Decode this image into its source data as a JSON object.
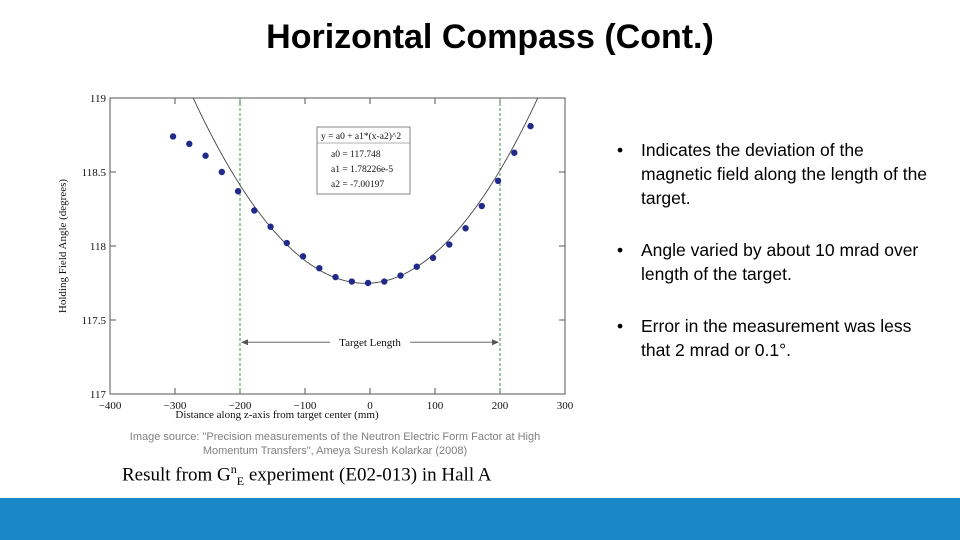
{
  "slide": {
    "title": "Horizontal Compass (Cont.)",
    "bullets": [
      "Indicates the deviation of the magnetic field along the length of the target.",
      "Angle varied by about 10 mrad over length of the target.",
      "Error in the measurement was less that 2 mrad or 0.1°."
    ],
    "image_source": "Image source: \"Precision measurements of the Neutron Electric Form Factor at High Momentum Transfers\", Ameya Suresh Kolarkar (2008)",
    "result_caption": {
      "pre": "Result from G",
      "sup": "n",
      "sub": "E",
      "post": " experiment (E02-013) in Hall A"
    },
    "accent_color": "#1a87c9"
  },
  "chart_data": {
    "type": "scatter",
    "xlabel": "Distance along z-axis from target center (mm)",
    "ylabel": "Holding Field Angle (degrees)",
    "xlim": [
      -400,
      300
    ],
    "ylim": [
      117,
      119
    ],
    "x_ticks": [
      -400,
      -300,
      -200,
      -100,
      0,
      100,
      200,
      300
    ],
    "y_ticks": [
      117,
      117.5,
      118,
      118.5,
      119
    ],
    "x_tick_labels": [
      "−400",
      "−300",
      "−200",
      "−100",
      "0",
      "100",
      "200",
      "300"
    ],
    "y_tick_labels": [
      "117",
      "117.5",
      "118",
      "118.5",
      "119"
    ],
    "grid": false,
    "series": [
      {
        "color": "#1f2a8a",
        "x": [
          -303,
          -278,
          -253,
          -228,
          -203,
          -178,
          -153,
          -128,
          -103,
          -78,
          -53,
          -28,
          -3,
          22,
          47,
          72,
          97,
          122,
          147,
          172,
          197,
          222,
          247
        ],
        "y": [
          118.74,
          118.69,
          118.61,
          118.5,
          118.37,
          118.24,
          118.13,
          118.02,
          117.93,
          117.85,
          117.79,
          117.76,
          117.75,
          117.76,
          117.8,
          117.86,
          117.92,
          118.01,
          118.12,
          118.27,
          118.44,
          118.63,
          118.81
        ]
      }
    ],
    "fit": {
      "color": "#444444",
      "formula": "y = a0 + a1*(x-a2)^2",
      "a0": 117.748,
      "a1": 1.78226e-05,
      "a2": -7.00197
    },
    "fit_box": {
      "lines": [
        "y = a0 + a1*(x-a2)^2",
        "a0 = 117.748",
        "a1 = 1.78226e-5",
        "a2 = -7.00197"
      ]
    },
    "target_markers": [
      -200,
      200
    ],
    "annotation": {
      "text": "Target Length",
      "x_from": -200,
      "x_to": 200,
      "y": 117.35
    }
  }
}
